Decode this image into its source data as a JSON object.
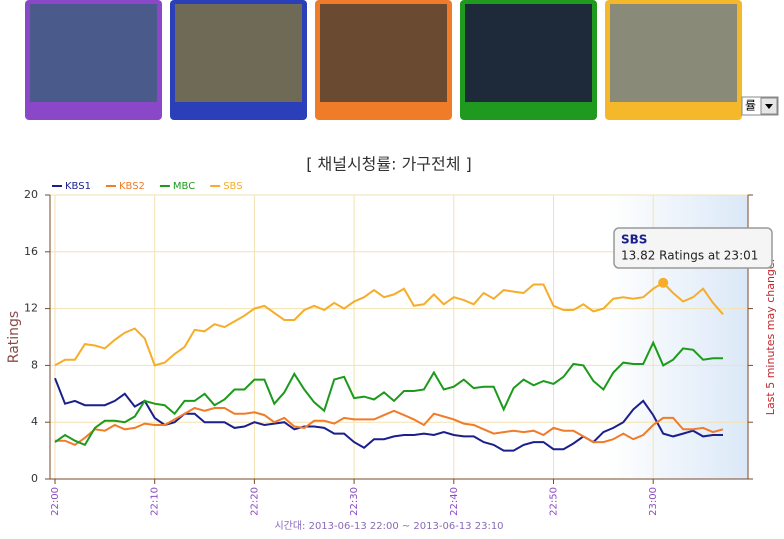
{
  "ui": {
    "select_text": "률"
  },
  "chart_data": {
    "type": "line",
    "title": "[ 채널시청률: 가구전체 ]",
    "ylabel": "Ratings",
    "xlabel": "시간대: 2013-06-13 22:00 ~ 2013-06-13 23:10",
    "note": "Last 5 minutes may change.",
    "tooltip": {
      "series": "SBS",
      "text": "13.82 Ratings at 23:01",
      "index": 61
    },
    "categories": [
      "22:00",
      null,
      null,
      null,
      null,
      null,
      null,
      null,
      null,
      null,
      "22:10",
      null,
      null,
      null,
      null,
      null,
      null,
      null,
      null,
      null,
      "22:20",
      null,
      null,
      null,
      null,
      null,
      null,
      null,
      null,
      null,
      "22:30",
      null,
      null,
      null,
      null,
      null,
      null,
      null,
      null,
      null,
      "22:40",
      null,
      null,
      null,
      null,
      null,
      null,
      null,
      null,
      null,
      "22:50",
      null,
      null,
      null,
      null,
      null,
      null,
      null,
      null,
      null,
      "23:00",
      null,
      null,
      null,
      null,
      null,
      null,
      null
    ],
    "series": [
      {
        "name": "KBS1",
        "color": "#1a1f8c",
        "values": [
          7.1,
          5.3,
          5.5,
          5.2,
          5.2,
          5.2,
          5.5,
          6.0,
          5.1,
          5.5,
          4.3,
          3.8,
          4.0,
          4.6,
          4.6,
          4.0,
          4.0,
          4.0,
          3.6,
          3.7,
          4.0,
          3.8,
          3.9,
          4.0,
          3.5,
          3.7,
          3.7,
          3.6,
          3.2,
          3.2,
          2.6,
          2.2,
          2.8,
          2.8,
          3.0,
          3.1,
          3.1,
          3.2,
          3.1,
          3.3,
          3.1,
          3.0,
          3.0,
          2.6,
          2.4,
          2.0,
          2.0,
          2.4,
          2.6,
          2.6,
          2.1,
          2.1,
          2.5,
          3.0,
          2.6,
          3.3,
          3.6,
          4.0,
          4.9,
          5.5,
          4.5,
          3.2,
          3.0,
          3.2,
          3.4,
          3.0,
          3.1,
          3.1
        ]
      },
      {
        "name": "KBS2",
        "color": "#f07c2a",
        "values": [
          2.7,
          2.7,
          2.4,
          2.9,
          3.5,
          3.4,
          3.8,
          3.5,
          3.6,
          3.9,
          3.8,
          3.8,
          4.2,
          4.6,
          5.0,
          4.8,
          5.0,
          5.0,
          4.6,
          4.6,
          4.7,
          4.5,
          4.0,
          4.3,
          3.7,
          3.6,
          4.1,
          4.1,
          3.9,
          4.3,
          4.2,
          4.2,
          4.2,
          4.5,
          4.8,
          4.5,
          4.2,
          3.8,
          4.6,
          4.4,
          4.2,
          3.9,
          3.8,
          3.5,
          3.2,
          3.3,
          3.4,
          3.3,
          3.4,
          3.1,
          3.6,
          3.4,
          3.4,
          3.0,
          2.6,
          2.6,
          2.8,
          3.2,
          2.8,
          3.1,
          3.8,
          4.3,
          4.3,
          3.5,
          3.5,
          3.6,
          3.3,
          3.5
        ]
      },
      {
        "name": "MBC",
        "color": "#1c9a1c",
        "values": [
          2.6,
          3.1,
          2.7,
          2.4,
          3.6,
          4.1,
          4.1,
          4.0,
          4.4,
          5.5,
          5.3,
          5.2,
          4.6,
          5.5,
          5.5,
          6.0,
          5.2,
          5.6,
          6.3,
          6.3,
          7.0,
          7.0,
          5.3,
          6.1,
          7.4,
          6.3,
          5.4,
          4.8,
          7.0,
          7.2,
          5.7,
          5.8,
          5.6,
          6.1,
          5.5,
          6.2,
          6.2,
          6.3,
          7.5,
          6.3,
          6.5,
          7.0,
          6.4,
          6.5,
          6.5,
          4.9,
          6.4,
          7.0,
          6.6,
          6.9,
          6.7,
          7.2,
          8.1,
          8.0,
          6.9,
          6.3,
          7.5,
          8.2,
          8.1,
          8.1,
          9.6,
          8.0,
          8.4,
          9.2,
          9.1,
          8.4,
          8.5,
          8.5
        ]
      },
      {
        "name": "SBS",
        "color": "#f5ad2a",
        "values": [
          8.0,
          8.4,
          8.4,
          9.5,
          9.4,
          9.2,
          9.8,
          10.3,
          10.6,
          9.9,
          8.0,
          8.2,
          8.8,
          9.3,
          10.5,
          10.4,
          10.9,
          10.7,
          11.1,
          11.5,
          12.0,
          12.2,
          11.7,
          11.2,
          11.2,
          11.9,
          12.2,
          11.9,
          12.4,
          12.0,
          12.5,
          12.8,
          13.3,
          12.8,
          13.0,
          13.4,
          12.2,
          12.3,
          13.0,
          12.3,
          12.8,
          12.6,
          12.3,
          13.1,
          12.7,
          13.3,
          13.2,
          13.1,
          13.7,
          13.7,
          12.2,
          11.9,
          11.9,
          12.3,
          11.8,
          12.0,
          12.7,
          12.8,
          12.7,
          12.8,
          13.4,
          13.82,
          13.1,
          12.5,
          12.8,
          13.4,
          12.4,
          11.6
        ]
      }
    ],
    "ylim": [
      0,
      20
    ],
    "yticks": [
      0,
      4,
      8,
      12,
      16,
      20
    ],
    "grid": true
  }
}
